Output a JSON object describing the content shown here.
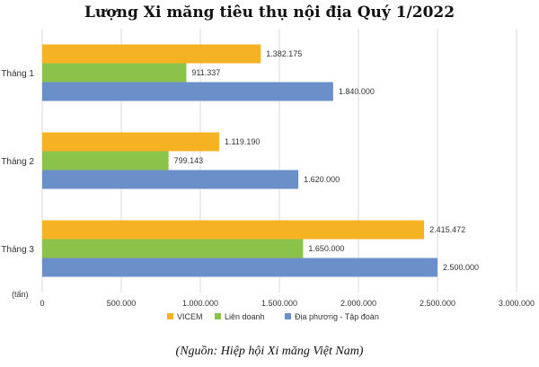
{
  "chart_data": {
    "type": "bar",
    "orientation": "horizontal",
    "title": "Lượng Xi măng tiêu thụ nội địa Quý 1/2022",
    "unit_label": "(tấn)",
    "categories": [
      "Tháng 1",
      "Tháng 2",
      "Tháng 3"
    ],
    "series": [
      {
        "name": "VICEM",
        "color": "#f5b324",
        "values": [
          1382175,
          1119190,
          2415472
        ],
        "labels": [
          "1.382.175",
          "1.119.190",
          "2.415.472"
        ]
      },
      {
        "name": "Liên doanh",
        "color": "#8bc34a",
        "values": [
          911337,
          799143,
          1650000
        ],
        "labels": [
          "911.337",
          "799.143",
          "1.650.000"
        ]
      },
      {
        "name": "Địa phương - Tập đoàn",
        "color": "#6b8fc9",
        "values": [
          1840000,
          1620000,
          2500000
        ],
        "labels": [
          "1.840.000",
          "1.620.000",
          "2.500.000"
        ]
      }
    ],
    "xlim": [
      0,
      3000000
    ],
    "xticks": [
      0,
      500000,
      1000000,
      1500000,
      2000000,
      2500000,
      3000000
    ],
    "xtick_labels": [
      "0",
      "500.000",
      "1.000.000",
      "1.500.000",
      "2.000.000",
      "2.500.000",
      "3.000.000"
    ],
    "grid": true,
    "legend_position": "bottom"
  },
  "source": "(Nguồn: Hiệp hội Xi măng Việt Nam)"
}
